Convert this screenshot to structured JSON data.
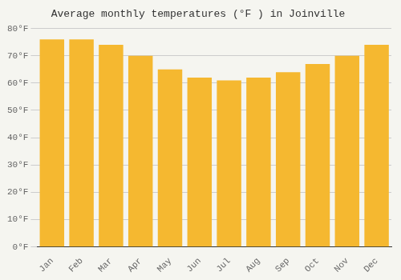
{
  "chart_data": {
    "type": "bar",
    "title": "Average monthly temperatures (°F ) in Joinville",
    "categories": [
      "Jan",
      "Feb",
      "Mar",
      "Apr",
      "May",
      "Jun",
      "Jul",
      "Aug",
      "Sep",
      "Oct",
      "Nov",
      "Dec"
    ],
    "values": [
      76,
      76,
      74,
      70,
      65,
      62,
      61,
      62,
      64,
      67,
      70,
      74
    ],
    "color": "#F5B830",
    "ylim": [
      0,
      80
    ],
    "yticks": [
      {
        "value": 0,
        "label": "0°F"
      },
      {
        "value": 10,
        "label": "10°F"
      },
      {
        "value": 20,
        "label": "20°F"
      },
      {
        "value": 30,
        "label": "30°F"
      },
      {
        "value": 40,
        "label": "40°F"
      },
      {
        "value": 50,
        "label": "50°F"
      },
      {
        "value": 60,
        "label": "60°F"
      },
      {
        "value": 70,
        "label": "70°F"
      },
      {
        "value": 80,
        "label": "80°F"
      }
    ],
    "grid": true
  }
}
